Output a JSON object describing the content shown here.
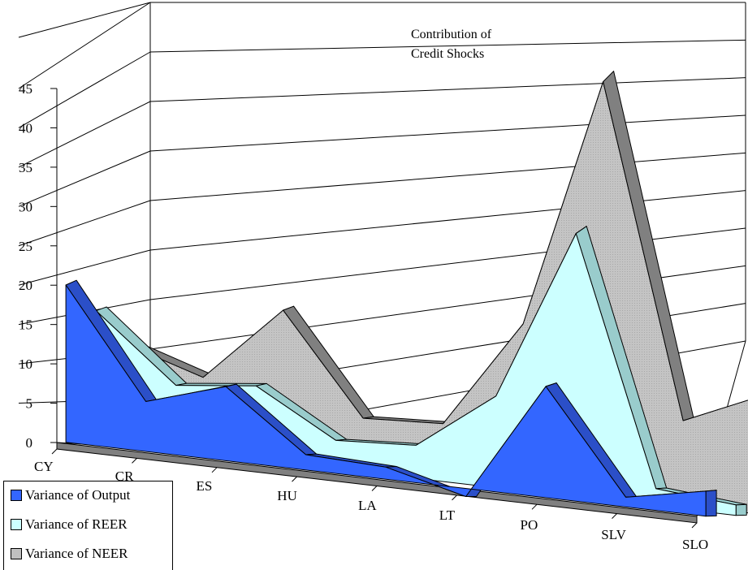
{
  "chart_data": {
    "type": "area",
    "title_lines": [
      "Contribution of",
      "Credit Shocks"
    ],
    "categories": [
      "CY",
      "CR",
      "ES",
      "HU",
      "LA",
      "LT",
      "PO",
      "SLV",
      "SLO"
    ],
    "y_ticks": [
      "0",
      "5",
      "10",
      "15",
      "20",
      "25",
      "30",
      "35",
      "40",
      "45"
    ],
    "ylim": [
      0,
      45
    ],
    "grid": true,
    "three_d": true,
    "legend_position": "bottom-left",
    "series": [
      {
        "name": "Variance of Output",
        "values": [
          19.5,
          6.2,
          9.2,
          1.9,
          1.5,
          -1.0,
          13.8,
          1.2,
          3.1
        ],
        "color": "#3366ff",
        "side_color": "#2b4fc8"
      },
      {
        "name": "Variance of REER",
        "values": [
          15.0,
          7.5,
          8.5,
          3.3,
          3.8,
          10.5,
          30.2,
          2.0,
          1.2
        ],
        "color": "#ccffff",
        "side_color": "#99cccc"
      },
      {
        "name": "Variance of NEER",
        "values": [
          10.5,
          7.8,
          16.0,
          5.4,
          5.8,
          17.5,
          44.5,
          9.1,
          12.8
        ],
        "color": "#c0c0c0",
        "side_color": "#808080"
      }
    ]
  }
}
